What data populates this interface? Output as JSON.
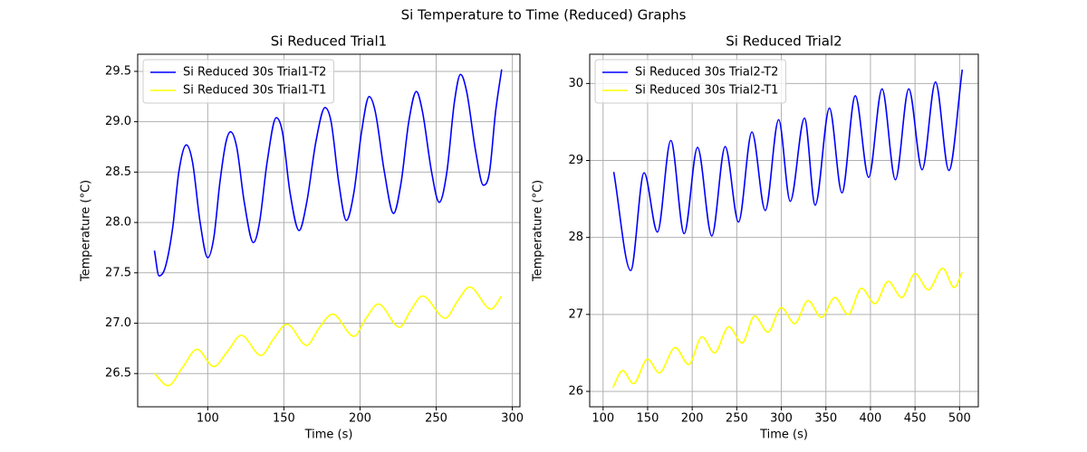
{
  "title": "Si Temperature to Time (Reduced) Graphs",
  "chart_data": [
    {
      "type": "line",
      "title": "Si Reduced Trial1",
      "x_label": "Time (s)",
      "y_label": "Temperature (°C)",
      "xlim": [
        54,
        305
      ],
      "ylim": [
        26.17,
        29.67
      ],
      "xticks": [
        100,
        150,
        200,
        250,
        300
      ],
      "yticks": [
        26.5,
        {
          "value": 27,
          "label": "27.0"
        },
        27.5,
        {
          "value": 28,
          "label": "28.0"
        },
        28.5,
        {
          "value": 29,
          "label": "29.0"
        },
        29.5
      ],
      "grid": true,
      "legend": "upper left",
      "series": [
        {
          "name": "Si Reduced 30s Trial1-T2",
          "color": "#0000ff",
          "x": [
            65,
            68,
            72,
            77,
            81,
            86,
            90,
            95,
            100,
            104,
            108,
            112,
            115,
            119,
            124,
            130,
            134,
            139,
            145,
            149,
            154,
            160,
            165,
            171,
            177,
            181,
            186,
            191,
            196,
            201,
            206,
            210,
            216,
            222,
            227,
            232,
            237,
            241,
            247,
            252,
            257,
            262,
            266,
            270,
            276,
            281,
            285,
            289,
            293
          ],
          "values": [
            27.72,
            27.47,
            27.55,
            27.95,
            28.5,
            28.77,
            28.6,
            28.0,
            27.65,
            27.85,
            28.4,
            28.8,
            28.9,
            28.75,
            28.2,
            27.8,
            28.0,
            28.6,
            29.04,
            28.9,
            28.3,
            27.92,
            28.2,
            28.8,
            29.14,
            29.0,
            28.4,
            28.02,
            28.3,
            28.9,
            29.25,
            29.1,
            28.5,
            28.09,
            28.4,
            29.0,
            29.3,
            29.1,
            28.5,
            28.2,
            28.5,
            29.2,
            29.47,
            29.3,
            28.7,
            28.37,
            28.5,
            29.1,
            29.52
          ]
        },
        {
          "name": "Si Reduced 30s Trial1-T1",
          "color": "#ffff00",
          "x": [
            65,
            74,
            83,
            93,
            104,
            113,
            122,
            135,
            143,
            152,
            165,
            173,
            182,
            196,
            204,
            212,
            226,
            233,
            241,
            256,
            264,
            272,
            286,
            293
          ],
          "values": [
            26.5,
            26.38,
            26.55,
            26.74,
            26.57,
            26.72,
            26.88,
            26.68,
            26.84,
            26.99,
            26.78,
            26.95,
            27.09,
            26.87,
            27.05,
            27.19,
            26.96,
            27.12,
            27.27,
            27.05,
            27.22,
            27.36,
            27.14,
            27.27
          ]
        }
      ]
    },
    {
      "type": "line",
      "title": "Si Reduced Trial2",
      "x_label": "Time (s)",
      "y_label": "Temperature (°C)",
      "xlim": [
        85,
        521
      ],
      "ylim": [
        25.8,
        30.38
      ],
      "xticks": [
        100,
        150,
        200,
        250,
        300,
        350,
        400,
        450,
        500
      ],
      "yticks": [
        26,
        27,
        28,
        29,
        30
      ],
      "grid": true,
      "legend": "upper left",
      "series": [
        {
          "name": "Si Reduced 30s Trial2-T2",
          "color": "#0000ff",
          "x": [
            112,
            131,
            146,
            161,
            176,
            191,
            206,
            222,
            237,
            252,
            267,
            282,
            297,
            310,
            326,
            338,
            354,
            368,
            383,
            398,
            413,
            428,
            443,
            458,
            473,
            488,
            503
          ],
          "values": [
            28.85,
            27.57,
            28.84,
            28.07,
            29.26,
            28.05,
            29.17,
            28.02,
            29.18,
            28.2,
            29.37,
            28.35,
            29.53,
            28.47,
            29.55,
            28.42,
            29.68,
            28.58,
            29.84,
            28.78,
            29.93,
            28.75,
            29.93,
            28.88,
            30.02,
            28.87,
            30.18
          ]
        },
        {
          "name": "Si Reduced 30s Trial2-T1",
          "color": "#ffff00",
          "x": [
            111,
            122,
            134,
            150,
            163,
            181,
            196,
            211,
            225,
            241,
            256,
            270,
            285,
            300,
            315,
            330,
            345,
            360,
            375,
            390,
            405,
            420,
            435,
            450,
            465,
            481,
            494,
            503
          ],
          "values": [
            26.05,
            26.27,
            26.1,
            26.42,
            26.24,
            26.57,
            26.35,
            26.71,
            26.5,
            26.84,
            26.63,
            26.98,
            26.77,
            27.09,
            26.88,
            27.18,
            26.96,
            27.22,
            27.0,
            27.34,
            27.14,
            27.43,
            27.22,
            27.53,
            27.32,
            27.6,
            27.35,
            27.55
          ]
        }
      ]
    }
  ]
}
